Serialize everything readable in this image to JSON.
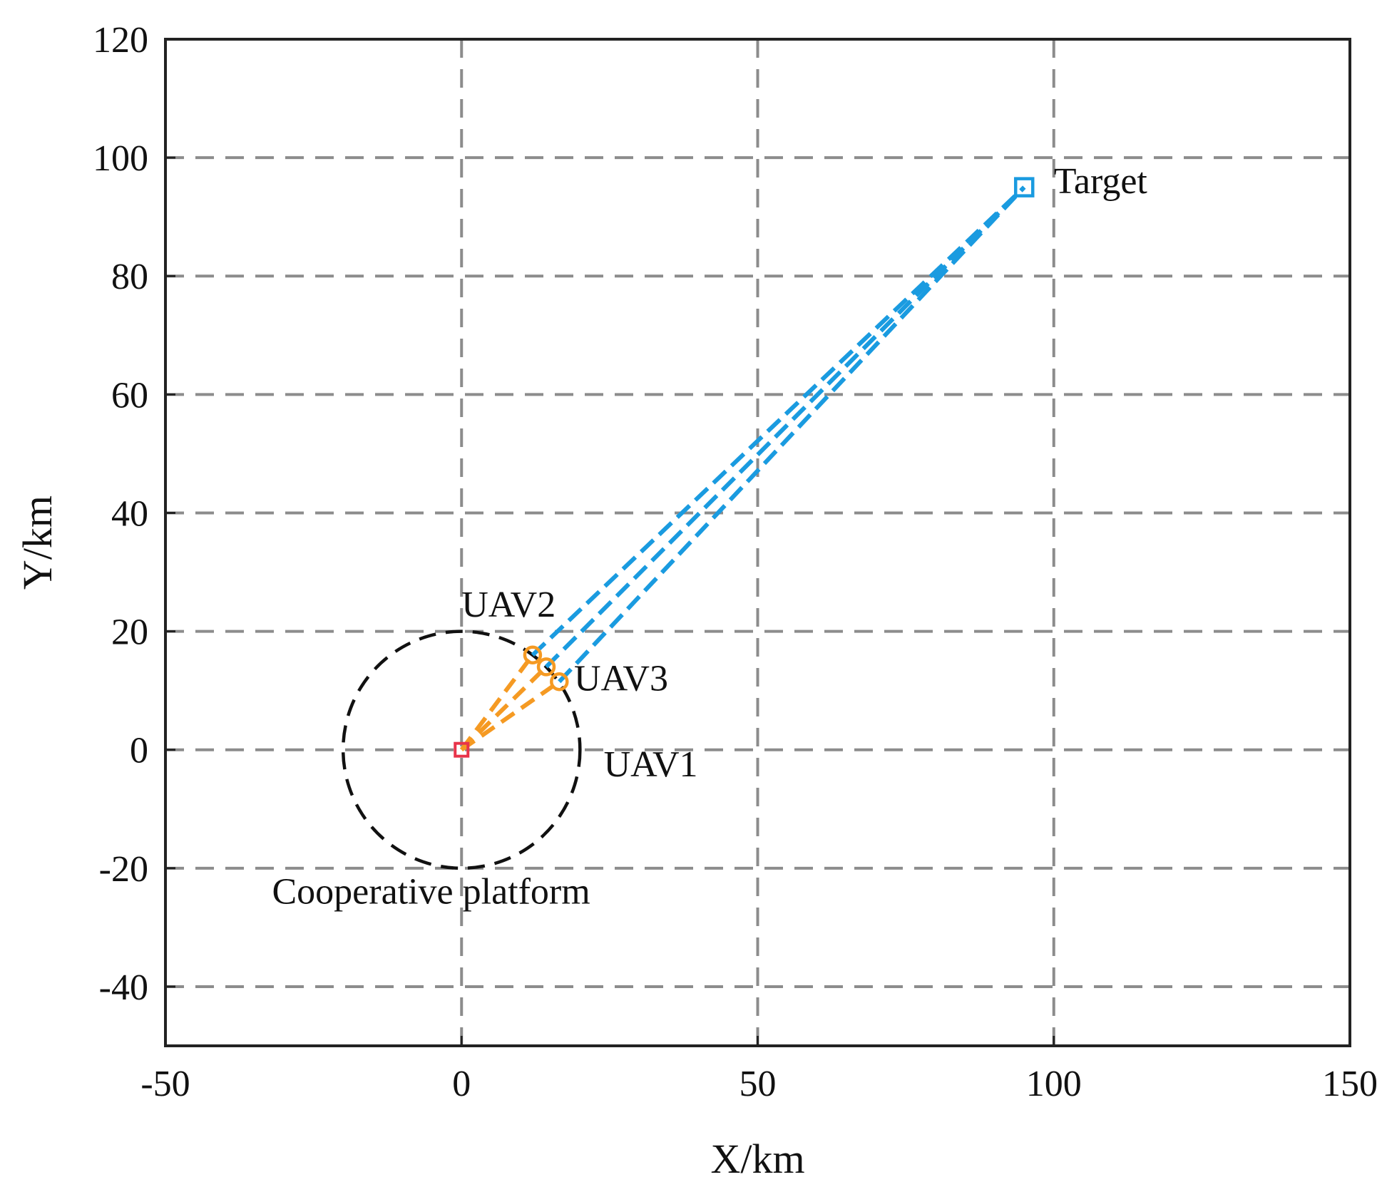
{
  "chart_data": {
    "type": "line",
    "xlabel": "X/km",
    "ylabel": "Y/km",
    "xlim": [
      -50,
      150
    ],
    "ylim": [
      -50,
      120
    ],
    "xticks": [
      -50,
      0,
      50,
      100,
      150
    ],
    "yticks": [
      -40,
      -20,
      0,
      20,
      40,
      60,
      80,
      100,
      120
    ],
    "grid": true,
    "colors": {
      "grid": "#8c8c8c",
      "frame": "#222222",
      "platform": "#e8344a",
      "uav": "#f59a23",
      "target": "#1a9be0",
      "circle": "#111111"
    },
    "platform": {
      "x": 0,
      "y": 0,
      "marker": "square"
    },
    "cooperative_circle": {
      "center": [
        0,
        0
      ],
      "radius": 20
    },
    "target": {
      "x": 95,
      "y": 95,
      "marker": "square"
    },
    "uavs": [
      {
        "name": "UAV1",
        "x": 16.5,
        "y": 11.5,
        "marker": "circle"
      },
      {
        "name": "UAV2",
        "x": 12,
        "y": 16,
        "marker": "circle"
      },
      {
        "name": "UAV3",
        "x": 14.3,
        "y": 14,
        "marker": "circle"
      }
    ],
    "annotations": {
      "target": {
        "text": "Target",
        "x": 100,
        "y": 94
      },
      "uav1": {
        "text": "UAV1",
        "x": 24,
        "y": -4.5
      },
      "uav2": {
        "text": "UAV2",
        "x": 0,
        "y": 22.5
      },
      "uav3": {
        "text": "UAV3",
        "x": 19,
        "y": 10
      },
      "platform": {
        "text": "Cooperative platform",
        "x": -32,
        "y": -26
      }
    }
  }
}
